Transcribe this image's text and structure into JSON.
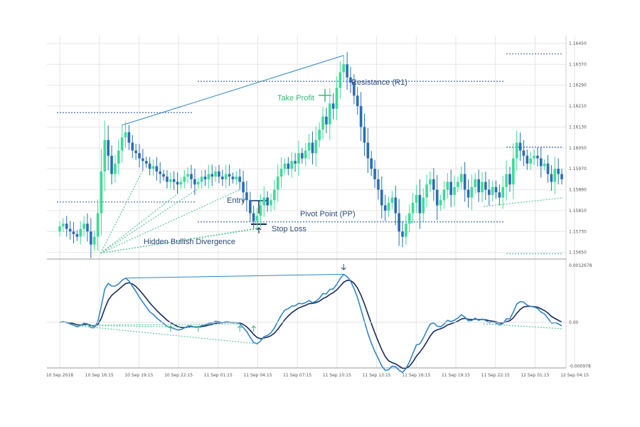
{
  "chart_data": {
    "type": "candlestick",
    "colors": {
      "bull": "#3ddc97",
      "bear": "#2a6db5",
      "macd": "#1b2a5c",
      "signal": "#2f86c8",
      "annotation_blue": "#2b4a7a",
      "annotation_green": "#3ab77a",
      "level_line": "#4a6fb0",
      "divergence": "#5cc79a",
      "grid": "#e6e6e6"
    },
    "price_axis": {
      "ticks": [
        "1.16450",
        "1.16370",
        "1.16290",
        "1.16210",
        "1.16130",
        "1.16050",
        "1.15970",
        "1.15890",
        "1.15810",
        "1.15730",
        "1.15650"
      ],
      "ylim": [
        1.1563,
        1.1648
      ]
    },
    "oscillator_axis": {
      "ticks": [
        "0.0012678",
        "0.00",
        "-0.000978"
      ],
      "ylim": [
        -0.00102,
        0.00135
      ]
    },
    "time_axis": {
      "ticks": [
        "10 Sep 2018",
        "10 Sep 16:15",
        "10 Sep 19:15",
        "10 Sep 22:15",
        "11 Sep 01:15",
        "11 Sep 04:15",
        "11 Sep 07:15",
        "11 Sep 10:15",
        "11 Sep 13:15",
        "11 Sep 16:15",
        "11 Sep 19:15",
        "11 Sep 22:15",
        "12 Sep 01:15",
        "12 Sep 04:15"
      ]
    },
    "annotations": {
      "resistance": "Resistance (R1)",
      "take_profit": "Take Profit",
      "entry": "Entry",
      "pivot_point": "Pivot Point (PP)",
      "stop_loss": "Stop Loss",
      "hidden_divergence": "Hidden Bullish Divergence"
    },
    "levels": {
      "resistance": 1.16305,
      "pivot": 1.15767,
      "left_resistance": 1.16185,
      "left_support": 1.15843,
      "right_top": 1.1641,
      "right_mid": 1.16053,
      "right_low": 1.15645
    },
    "close": [
      1.1575,
      1.1576,
      1.1574,
      1.1573,
      1.1572,
      1.1571,
      1.1574,
      1.1576,
      1.1573,
      1.1568,
      1.1571,
      1.158,
      1.1596,
      1.1608,
      1.1602,
      1.1595,
      1.1599,
      1.1604,
      1.1609,
      1.1611,
      1.1607,
      1.1604,
      1.1603,
      1.1601,
      1.16,
      1.1599,
      1.1597,
      1.1598,
      1.1596,
      1.1595,
      1.1594,
      1.1592,
      1.1593,
      1.1592,
      1.1591,
      1.1592,
      1.1594,
      1.1595,
      1.1593,
      1.1591,
      1.1592,
      1.1594,
      1.1593,
      1.1595,
      1.1594,
      1.1596,
      1.1594,
      1.1593,
      1.1595,
      1.1594,
      1.1593,
      1.1594,
      1.1592,
      1.1588,
      1.1585,
      1.158,
      1.1577,
      1.1579,
      1.1583,
      1.1586,
      1.1583,
      1.1585,
      1.1589,
      1.1594,
      1.1597,
      1.1599,
      1.1597,
      1.16,
      1.1599,
      1.1603,
      1.1601,
      1.1604,
      1.1607,
      1.1603,
      1.1608,
      1.1612,
      1.1617,
      1.1614,
      1.1622,
      1.162,
      1.1628,
      1.1634,
      1.1637,
      1.1632,
      1.163,
      1.1625,
      1.1621,
      1.1613,
      1.1607,
      1.1601,
      1.1597,
      1.1593,
      1.1589,
      1.1583,
      1.1581,
      1.1584,
      1.1586,
      1.158,
      1.1573,
      1.1571,
      1.1576,
      1.158,
      1.1584,
      1.1587,
      1.158,
      1.1586,
      1.1591,
      1.1593,
      1.1589,
      1.1583,
      1.1585,
      1.1589,
      1.1592,
      1.1587,
      1.159,
      1.1592,
      1.1595,
      1.1589,
      1.1586,
      1.159,
      1.1593,
      1.1588,
      1.1592,
      1.1589,
      1.1587,
      1.159,
      1.1588,
      1.1586,
      1.159,
      1.1595,
      1.1591,
      1.1601,
      1.1607,
      1.1604,
      1.1602,
      1.1599,
      1.1601,
      1.1602,
      1.1601,
      1.1598,
      1.1599,
      1.1595,
      1.1592,
      1.1597,
      1.1595,
      1.1593
    ]
  }
}
